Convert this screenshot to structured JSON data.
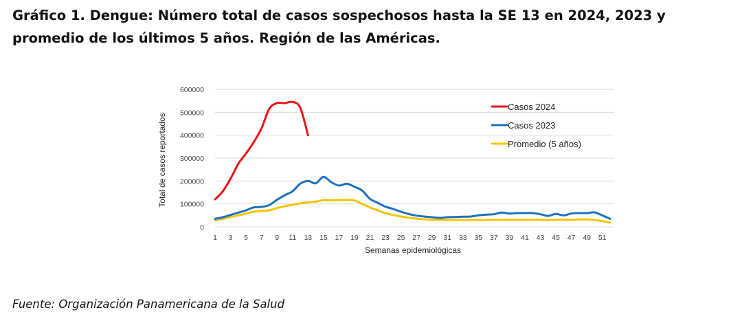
{
  "title": "Gráfico 1. Dengue: Número total de casos sospechosos hasta la SE 13 en 2024, 2023 y promedio de los últimos 5 años. Región de las Américas.",
  "source": "Fuente: Organización Panamericana de la Salud",
  "chart_data": {
    "type": "line",
    "title": "",
    "xlabel": "Semanas epidemiológicas",
    "ylabel": "Total de casos reportados",
    "ylim": [
      0,
      600000
    ],
    "xlim": [
      1,
      52
    ],
    "yticks": [
      0,
      100000,
      200000,
      300000,
      400000,
      500000,
      600000
    ],
    "ytick_labels": [
      "0",
      "100000",
      "200000",
      "300000",
      "400000",
      "500000",
      "600000"
    ],
    "xticks": [
      1,
      3,
      5,
      7,
      9,
      11,
      13,
      15,
      17,
      19,
      21,
      23,
      25,
      27,
      29,
      31,
      33,
      35,
      37,
      39,
      41,
      43,
      45,
      47,
      49,
      51
    ],
    "xtick_labels": [
      "1",
      "3",
      "5",
      "7",
      "9",
      "11",
      "13",
      "15",
      "17",
      "19",
      "21",
      "23",
      "25",
      "27",
      "29",
      "31",
      "33",
      "35",
      "37",
      "39",
      "41",
      "43",
      "45",
      "47",
      "49",
      "51"
    ],
    "grid": "horizontal",
    "legend_position": "top-right",
    "series": [
      {
        "name": "Casos 2024",
        "color": "#e8131b",
        "x": [
          1,
          2,
          3,
          4,
          5,
          6,
          7,
          8,
          9,
          10,
          11,
          12,
          13
        ],
        "values": [
          120000,
          155000,
          210000,
          275000,
          320000,
          370000,
          430000,
          515000,
          540000,
          540000,
          545000,
          520000,
          400000
        ]
      },
      {
        "name": "Casos 2023",
        "color": "#1b70bd",
        "x": [
          1,
          2,
          3,
          4,
          5,
          6,
          7,
          8,
          9,
          10,
          11,
          12,
          13,
          14,
          15,
          16,
          17,
          18,
          19,
          20,
          21,
          22,
          23,
          24,
          25,
          26,
          27,
          28,
          29,
          30,
          31,
          32,
          33,
          34,
          35,
          36,
          37,
          38,
          39,
          40,
          41,
          42,
          43,
          44,
          45,
          46,
          47,
          48,
          49,
          50,
          51,
          52
        ],
        "values": [
          35000,
          42000,
          52000,
          62000,
          72000,
          85000,
          87000,
          95000,
          118000,
          138000,
          155000,
          188000,
          200000,
          190000,
          218000,
          195000,
          180000,
          188000,
          175000,
          158000,
          122000,
          105000,
          88000,
          78000,
          66000,
          56000,
          49000,
          45000,
          42000,
          39000,
          42000,
          43000,
          44000,
          45000,
          50000,
          53000,
          55000,
          62000,
          58000,
          60000,
          60000,
          60000,
          55000,
          48000,
          56000,
          50000,
          58000,
          60000,
          60000,
          63000,
          50000,
          35000
        ]
      },
      {
        "name": "Promedio (5 años)",
        "color": "#f5c400",
        "x": [
          1,
          2,
          3,
          4,
          5,
          6,
          7,
          8,
          9,
          10,
          11,
          12,
          13,
          14,
          15,
          16,
          17,
          18,
          19,
          20,
          21,
          22,
          23,
          24,
          25,
          26,
          27,
          28,
          29,
          30,
          31,
          32,
          33,
          34,
          35,
          36,
          37,
          38,
          39,
          40,
          41,
          42,
          43,
          44,
          45,
          46,
          47,
          48,
          49,
          50,
          51,
          52
        ],
        "values": [
          28000,
          35000,
          43000,
          50000,
          58000,
          66000,
          70000,
          72000,
          82000,
          90000,
          96000,
          102000,
          107000,
          110000,
          116000,
          116000,
          117000,
          118000,
          115000,
          100000,
          85000,
          72000,
          60000,
          52000,
          45000,
          40000,
          36000,
          33000,
          31000,
          30000,
          30000,
          30000,
          30000,
          30000,
          30000,
          30000,
          31000,
          31000,
          31000,
          31000,
          31000,
          31000,
          31000,
          30000,
          31000,
          31000,
          31000,
          32000,
          32000,
          30000,
          25000,
          18000
        ]
      }
    ]
  }
}
